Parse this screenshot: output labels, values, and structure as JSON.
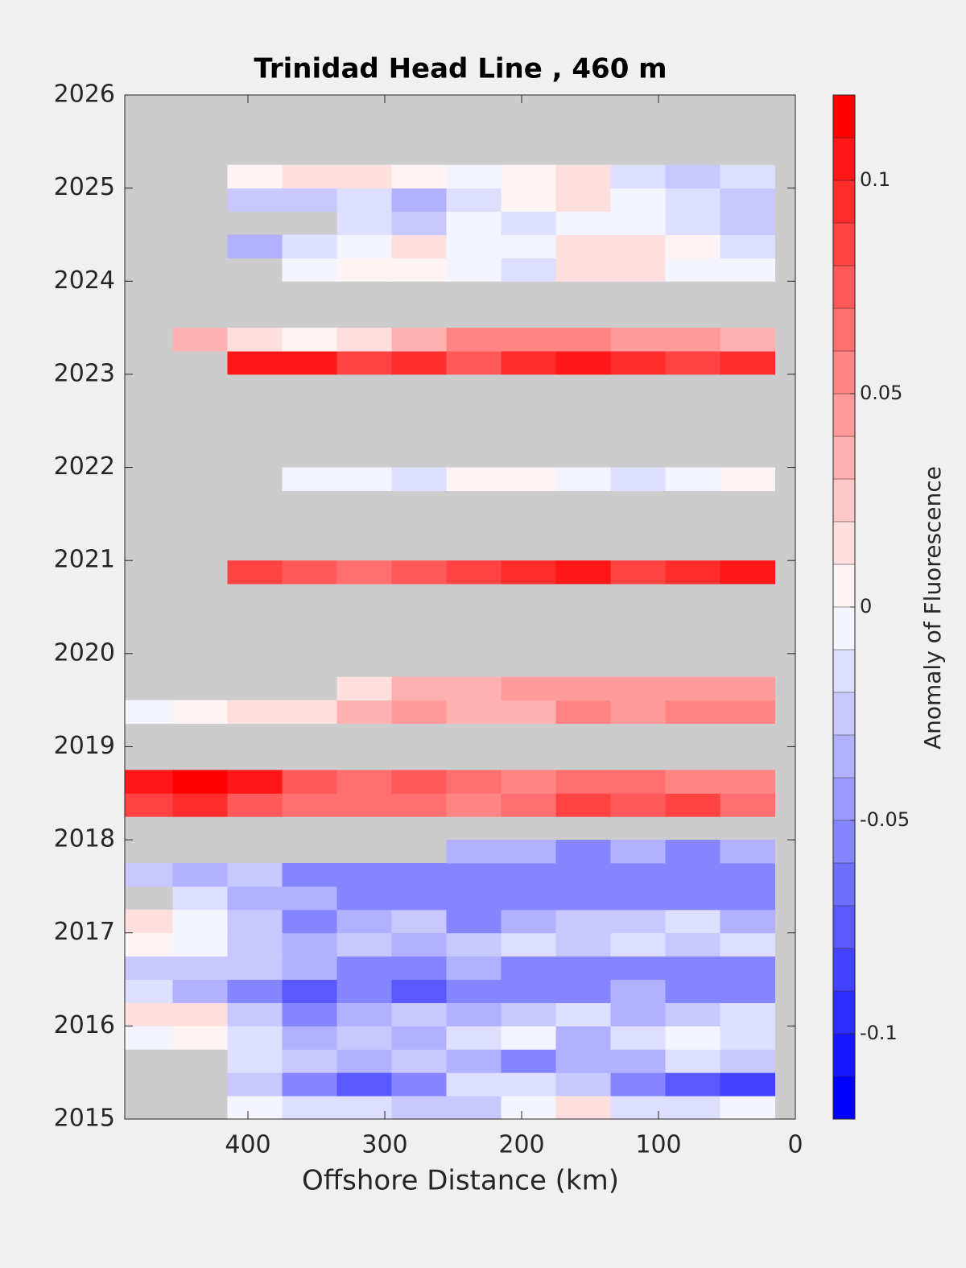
{
  "chart_data": {
    "type": "contour",
    "title": "Trinidad Head Line , 460 m",
    "x_label": "Offshore Distance (km)",
    "colorbar_label": "Anomaly of Fluorescence",
    "xlim": [
      490,
      0
    ],
    "xticks": [
      400,
      300,
      200,
      100,
      0
    ],
    "ylim": [
      2015,
      2026
    ],
    "yticks": [
      2015,
      2016,
      2017,
      2018,
      2019,
      2020,
      2021,
      2022,
      2023,
      2024,
      2025,
      2026
    ],
    "clim": [
      -0.12,
      0.12
    ],
    "cticks": [
      -0.1,
      -0.05,
      0,
      0.05,
      0.1
    ],
    "color_levels": 24,
    "low_color": "#0000ff",
    "mid_color": "#ffffff",
    "high_color": "#ff0000",
    "missing_color": "#cccccc",
    "x": [
      475,
      435,
      395,
      355,
      315,
      275,
      235,
      195,
      155,
      115,
      75,
      35
    ],
    "y": [
      2015.125,
      2015.375,
      2015.625,
      2015.875,
      2016.125,
      2016.375,
      2016.625,
      2016.875,
      2017.125,
      2017.375,
      2017.625,
      2017.875,
      2018.125,
      2018.375,
      2018.625,
      2018.875,
      2019.125,
      2019.375,
      2019.625,
      2019.875,
      2020.125,
      2020.375,
      2020.625,
      2020.875,
      2021.125,
      2021.375,
      2021.625,
      2021.875,
      2022.125,
      2022.375,
      2022.625,
      2022.875,
      2023.125,
      2023.375,
      2023.625,
      2023.875,
      2024.125,
      2024.375,
      2024.625,
      2024.875,
      2025.125
    ],
    "z": [
      [
        null,
        null,
        -0.01,
        -0.02,
        -0.02,
        -0.03,
        -0.03,
        -0.01,
        0.01,
        -0.02,
        -0.02,
        -0.01
      ],
      [
        null,
        null,
        -0.03,
        -0.05,
        -0.07,
        -0.05,
        -0.02,
        -0.02,
        -0.03,
        -0.05,
        -0.08,
        -0.09
      ],
      [
        null,
        null,
        -0.02,
        -0.03,
        -0.04,
        -0.03,
        -0.04,
        -0.05,
        -0.04,
        -0.04,
        -0.02,
        -0.03
      ],
      [
        -0.01,
        0,
        -0.02,
        -0.04,
        -0.03,
        -0.04,
        -0.02,
        -0.01,
        -0.04,
        -0.02,
        -0.01,
        -0.02
      ],
      [
        0.01,
        0.01,
        -0.03,
        -0.05,
        -0.04,
        -0.03,
        -0.04,
        -0.03,
        -0.02,
        -0.04,
        -0.03,
        -0.02
      ],
      [
        -0.02,
        -0.04,
        -0.06,
        -0.07,
        -0.05,
        -0.07,
        -0.06,
        -0.05,
        -0.06,
        -0.04,
        -0.05,
        -0.06
      ],
      [
        -0.03,
        -0.03,
        -0.03,
        -0.04,
        -0.05,
        -0.05,
        -0.04,
        -0.06,
        -0.05,
        -0.05,
        -0.05,
        -0.05
      ],
      [
        0,
        -0.01,
        -0.03,
        -0.04,
        -0.03,
        -0.04,
        -0.03,
        -0.02,
        -0.03,
        -0.02,
        -0.03,
        -0.02
      ],
      [
        0.01,
        -0.01,
        -0.03,
        -0.05,
        -0.04,
        -0.03,
        -0.06,
        -0.04,
        -0.03,
        -0.03,
        -0.02,
        -0.04
      ],
      [
        null,
        -0.02,
        -0.04,
        -0.04,
        -0.05,
        -0.06,
        -0.05,
        -0.06,
        -0.05,
        -0.05,
        -0.06,
        -0.05
      ],
      [
        -0.03,
        -0.04,
        -0.03,
        -0.05,
        -0.05,
        -0.06,
        -0.06,
        -0.05,
        -0.06,
        -0.05,
        -0.05,
        -0.06
      ],
      [
        null,
        null,
        null,
        null,
        null,
        null,
        -0.04,
        -0.04,
        -0.05,
        -0.04,
        -0.05,
        -0.04
      ],
      [
        null,
        null,
        null,
        null,
        null,
        null,
        null,
        null,
        null,
        null,
        null,
        null
      ],
      [
        0.08,
        0.09,
        0.07,
        0.06,
        0.06,
        0.06,
        0.05,
        0.06,
        0.08,
        0.07,
        0.08,
        0.06
      ],
      [
        0.1,
        0.11,
        0.1,
        0.07,
        0.06,
        0.07,
        0.06,
        0.05,
        0.06,
        0.06,
        0.05,
        0.05
      ],
      [
        null,
        null,
        null,
        null,
        null,
        null,
        null,
        null,
        null,
        null,
        null,
        null
      ],
      [
        null,
        null,
        null,
        null,
        null,
        null,
        null,
        null,
        null,
        null,
        null,
        null
      ],
      [
        -0.01,
        0,
        0.01,
        0.02,
        0.03,
        0.04,
        0.03,
        0.03,
        0.05,
        0.04,
        0.05,
        0.05
      ],
      [
        null,
        null,
        null,
        null,
        0.02,
        0.03,
        0.03,
        0.04,
        0.04,
        0.04,
        0.04,
        0.04
      ],
      [
        null,
        null,
        null,
        null,
        null,
        null,
        null,
        null,
        null,
        null,
        null,
        null
      ],
      [
        null,
        null,
        null,
        null,
        null,
        null,
        null,
        null,
        null,
        null,
        null,
        null
      ],
      [
        null,
        null,
        null,
        null,
        null,
        null,
        null,
        null,
        null,
        null,
        null,
        null
      ],
      [
        null,
        null,
        null,
        null,
        null,
        null,
        null,
        null,
        null,
        null,
        null,
        null
      ],
      [
        null,
        null,
        0.08,
        0.07,
        0.06,
        0.07,
        0.08,
        0.09,
        0.1,
        0.08,
        0.09,
        0.1
      ],
      [
        null,
        null,
        null,
        null,
        null,
        null,
        null,
        null,
        null,
        null,
        null,
        null
      ],
      [
        null,
        null,
        null,
        null,
        null,
        null,
        null,
        null,
        null,
        null,
        null,
        null
      ],
      [
        null,
        null,
        null,
        null,
        null,
        null,
        null,
        null,
        null,
        null,
        null,
        null
      ],
      [
        null,
        null,
        null,
        -0.01,
        -0.01,
        -0.02,
        0,
        0,
        -0.01,
        -0.02,
        -0.01,
        0
      ],
      [
        null,
        null,
        null,
        null,
        null,
        null,
        null,
        null,
        null,
        null,
        null,
        null
      ],
      [
        null,
        null,
        null,
        null,
        null,
        null,
        null,
        null,
        null,
        null,
        null,
        null
      ],
      [
        null,
        null,
        null,
        null,
        null,
        null,
        null,
        null,
        null,
        null,
        null,
        null
      ],
      [
        null,
        null,
        null,
        null,
        null,
        null,
        null,
        null,
        null,
        null,
        null,
        null
      ],
      [
        null,
        null,
        0.1,
        0.1,
        0.08,
        0.09,
        0.07,
        0.09,
        0.1,
        0.09,
        0.08,
        0.09
      ],
      [
        null,
        0.03,
        0.02,
        0,
        0.01,
        0.03,
        0.05,
        0.05,
        0.05,
        0.04,
        0.04,
        0.03
      ],
      [
        null,
        null,
        null,
        null,
        null,
        null,
        null,
        null,
        null,
        null,
        null,
        null
      ],
      [
        null,
        null,
        null,
        null,
        null,
        null,
        null,
        null,
        null,
        null,
        null,
        null
      ],
      [
        null,
        null,
        null,
        -0.01,
        0,
        0,
        -0.01,
        -0.02,
        0.01,
        0.02,
        -0.01,
        -0.01
      ],
      [
        null,
        null,
        -0.04,
        -0.02,
        -0.01,
        0.02,
        -0.01,
        -0.01,
        0.01,
        0.02,
        0,
        -0.02
      ],
      [
        null,
        null,
        null,
        null,
        -0.02,
        -0.03,
        -0.01,
        -0.02,
        -0.01,
        -0.01,
        -0.02,
        -0.03
      ],
      [
        null,
        null,
        -0.03,
        -0.03,
        -0.02,
        -0.04,
        -0.02,
        0,
        0.02,
        -0.01,
        -0.02,
        -0.03
      ],
      [
        null,
        null,
        0,
        0.01,
        0.01,
        0,
        -0.01,
        0,
        0.01,
        -0.02,
        -0.03,
        -0.02
      ]
    ]
  }
}
